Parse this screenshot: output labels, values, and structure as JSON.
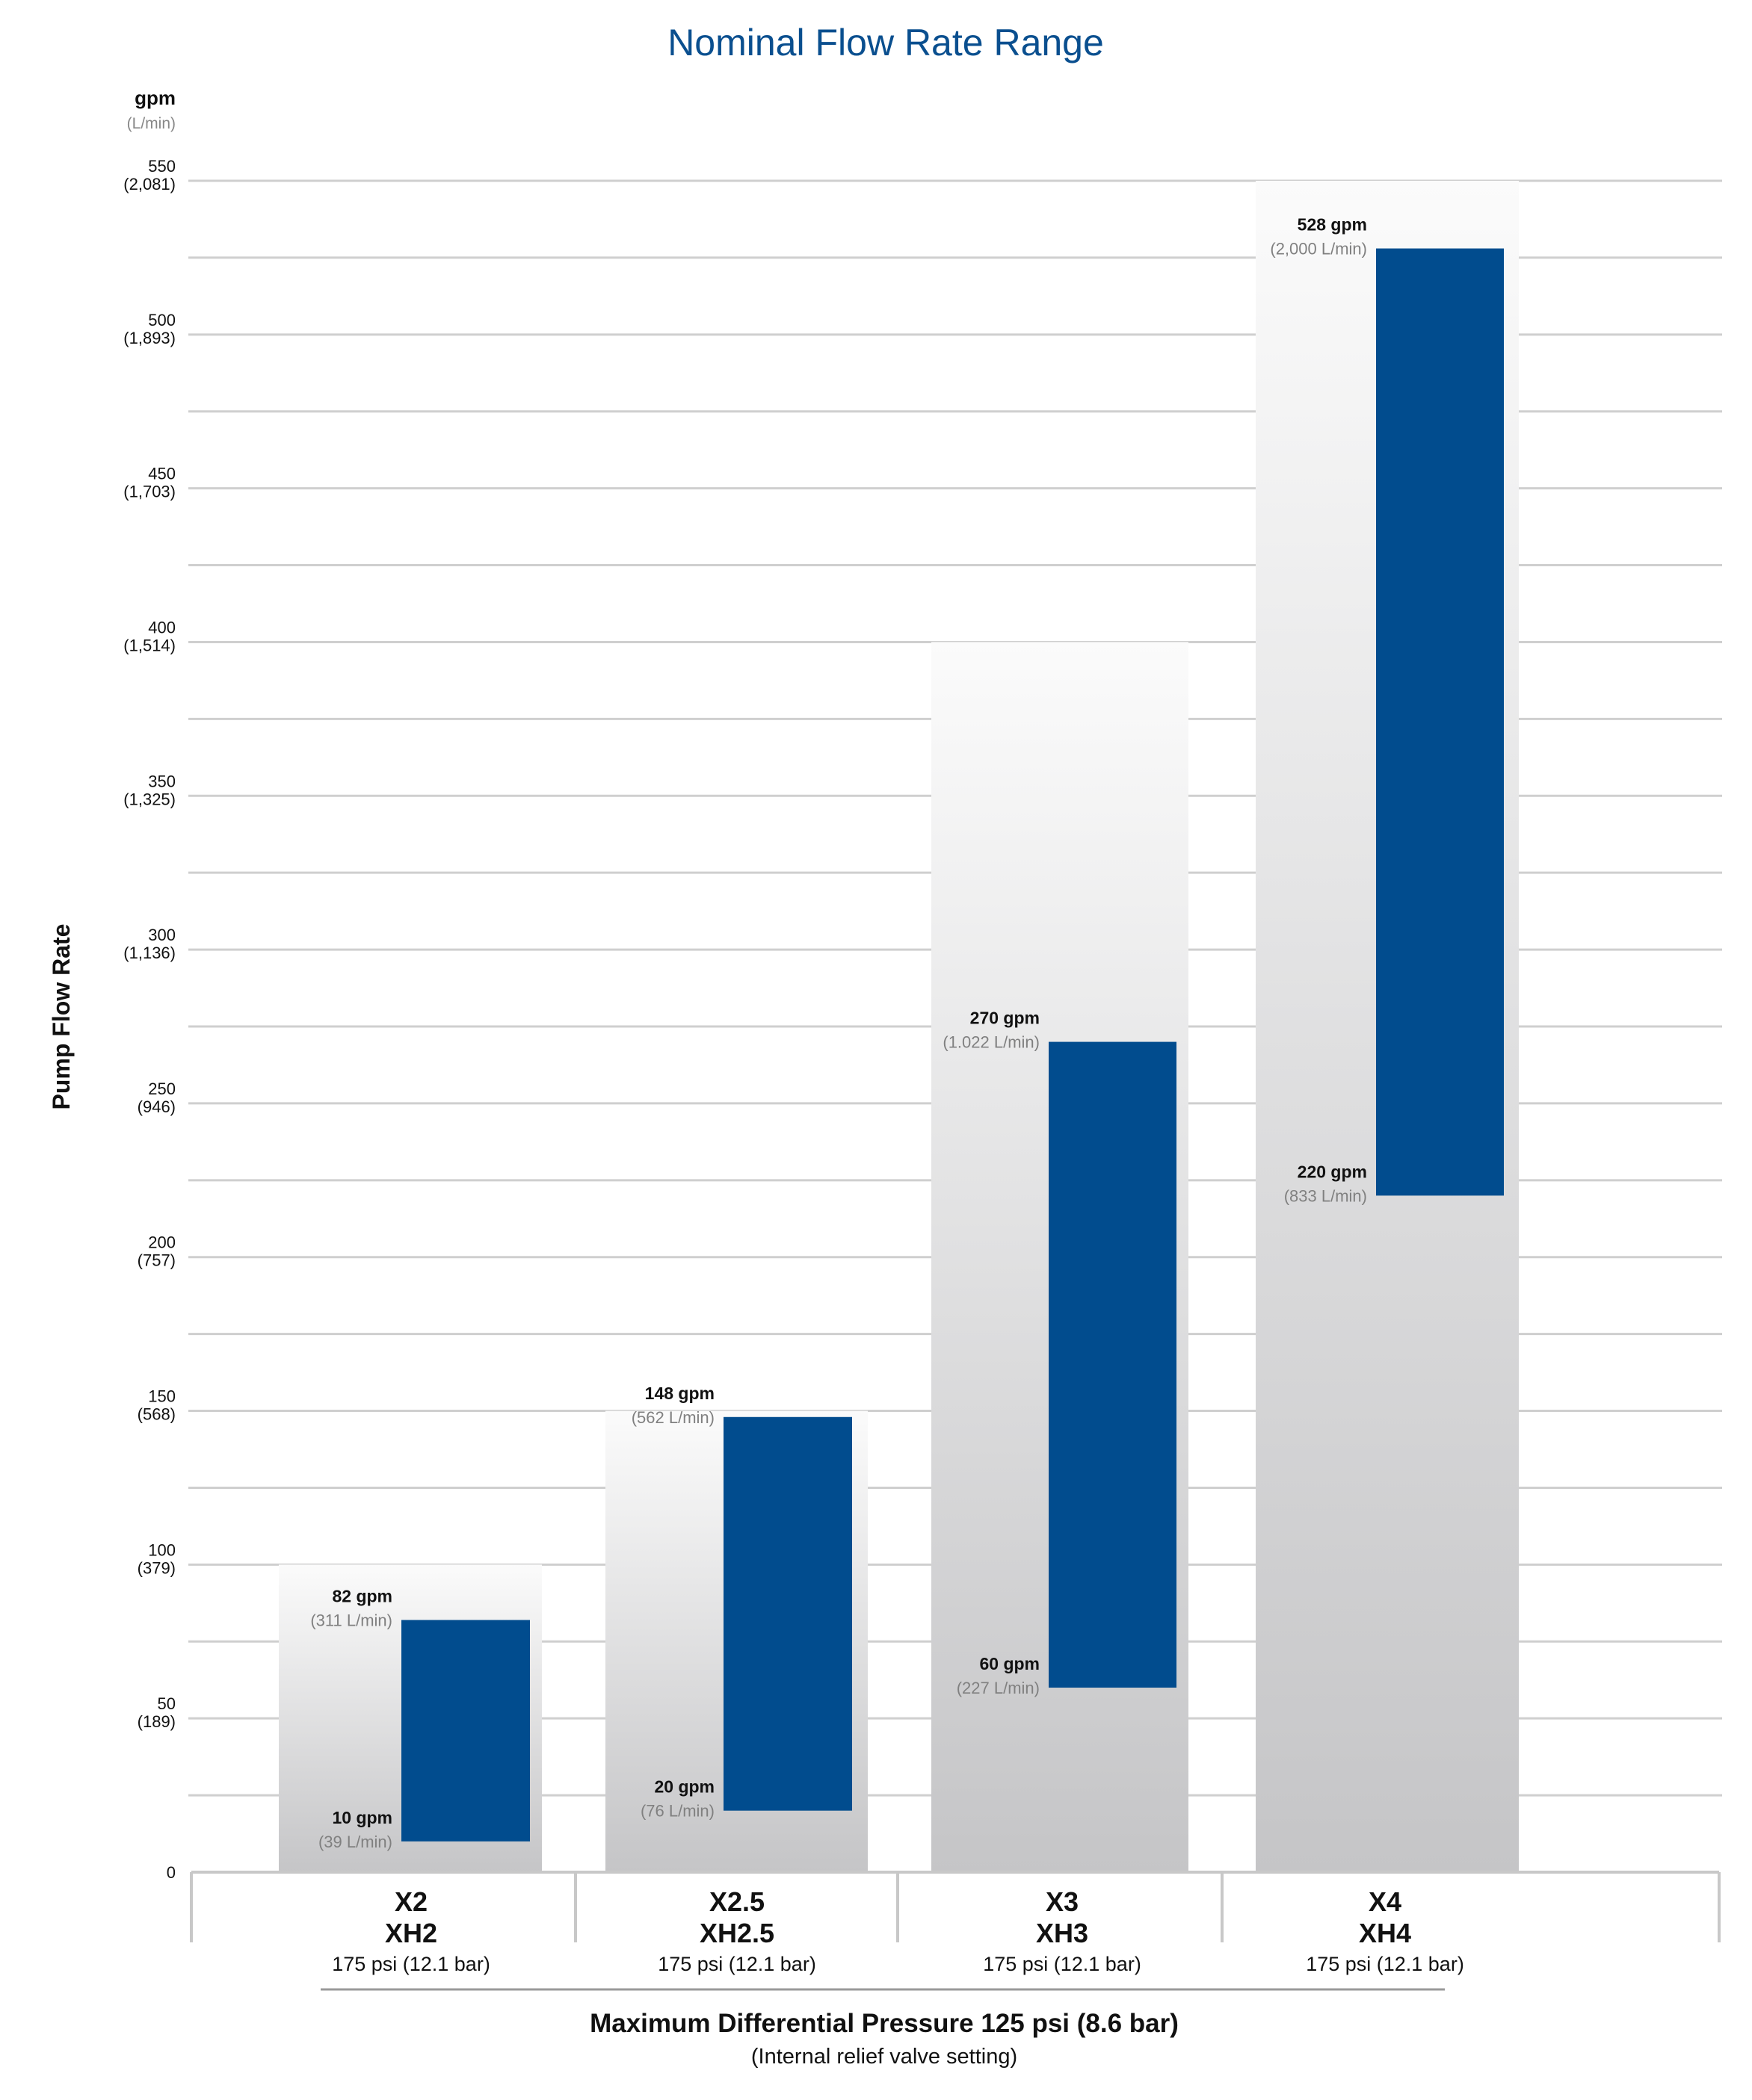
{
  "chart_data": {
    "type": "bar",
    "subtype": "floating-range",
    "title": "Nominal Flow Rate Range",
    "ylabel": "Pump Flow Rate",
    "y_unit": "gpm",
    "y_unit_secondary": "(L/min)",
    "ylim": [
      0,
      550
    ],
    "grid": true,
    "yticks": [
      {
        "value": 0,
        "label": "0",
        "sub": ""
      },
      {
        "value": 50,
        "label": "50",
        "sub": "(189)"
      },
      {
        "value": 100,
        "label": "100",
        "sub": "(379)"
      },
      {
        "value": 150,
        "label": "150",
        "sub": "(568)"
      },
      {
        "value": 200,
        "label": "200",
        "sub": "(757)"
      },
      {
        "value": 250,
        "label": "250",
        "sub": "(946)"
      },
      {
        "value": 300,
        "label": "300",
        "sub": "(1,136)"
      },
      {
        "value": 350,
        "label": "350",
        "sub": "(1,325)"
      },
      {
        "value": 400,
        "label": "400",
        "sub": "(1,514)"
      },
      {
        "value": 450,
        "label": "450",
        "sub": "(1,703)"
      },
      {
        "value": 500,
        "label": "500",
        "sub": "(1,893)"
      },
      {
        "value": 550,
        "label": "550",
        "sub": "(2,081)"
      }
    ],
    "categories": [
      {
        "name": "X2",
        "name2": "XH2",
        "pressure": "175 psi (12.1 bar)",
        "envelope_max": 100,
        "low": 10,
        "low_label": "10 gpm",
        "low_lmin": "(39 L/min)",
        "high": 82,
        "high_label": "82 gpm",
        "high_lmin": "(311 L/min)"
      },
      {
        "name": "X2.5",
        "name2": "XH2.5",
        "pressure": "175 psi (12.1 bar)",
        "envelope_max": 150,
        "low": 20,
        "low_label": "20 gpm",
        "low_lmin": "(76 L/min)",
        "high": 148,
        "high_label": "148 gpm",
        "high_lmin": "(562 L/min)"
      },
      {
        "name": "X3",
        "name2": "XH3",
        "pressure": "175 psi (12.1 bar)",
        "envelope_max": 400,
        "low": 60,
        "low_label": "60 gpm",
        "low_lmin": "(227 L/min)",
        "high": 270,
        "high_label": "270 gpm",
        "high_lmin": "(1.022 L/min)"
      },
      {
        "name": "X4",
        "name2": "XH4",
        "pressure": "175 psi (12.1 bar)",
        "envelope_max": 550,
        "low": 220,
        "low_label": "220 gpm",
        "low_lmin": "(833 L/min)",
        "high": 528,
        "high_label": "528 gpm",
        "high_lmin": "(2,000 L/min)"
      }
    ],
    "footer": {
      "title": "Maximum Differential Pressure 125 psi (8.6 bar)",
      "subtitle": "(Internal relief valve setting)"
    },
    "colors": {
      "bar": "#014c8e",
      "title": "#0a4f8f",
      "grid": "#cfcfcf"
    }
  }
}
